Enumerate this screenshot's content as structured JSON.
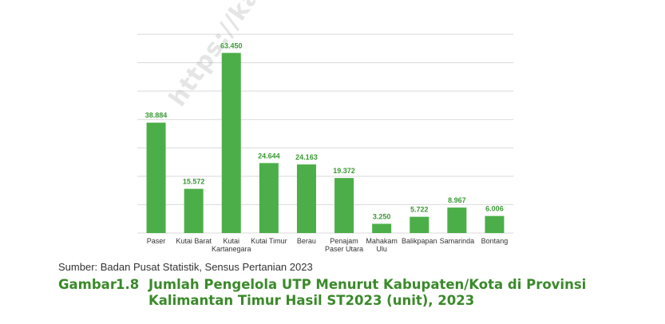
{
  "watermark": "https://kaltim.bps",
  "source_note": "Sumber: Badan Pusat Statistik, Sensus Pertanian 2023",
  "figure": {
    "label": "Gambar",
    "number": "1.8",
    "title": "Jumlah Pengelola UTP Menurut Kabupaten/Kota di Provinsi Kalimantan Timur Hasil ST2023 (unit), 2023"
  },
  "colors": {
    "bar": "#4cae48",
    "value_label": "#3a9a35",
    "grid": "#d9d9d9",
    "caption": "#3a8a2a"
  },
  "chart_data": {
    "type": "bar",
    "categories": [
      "Paser",
      "Kutai Barat",
      "Kutai Kartanegara",
      "Kutai Timur",
      "Berau",
      "Penajam Paser Utara",
      "Mahakam Ulu",
      "Balikpapan",
      "Samarinda",
      "Bontang"
    ],
    "category_lines": [
      [
        "Paser"
      ],
      [
        "Kutai Barat"
      ],
      [
        "Kutai",
        "Kartanegara"
      ],
      [
        "Kutai Timur"
      ],
      [
        "Berau"
      ],
      [
        "Penajam",
        "Paser Utara"
      ],
      [
        "Mahakam",
        "Ulu"
      ],
      [
        "Balikpapan"
      ],
      [
        "Samarinda"
      ],
      [
        "Bontang"
      ]
    ],
    "values": [
      38884,
      15572,
      63450,
      24644,
      24163,
      19372,
      3250,
      5722,
      8967,
      6006
    ],
    "value_labels": [
      "38.884",
      "15.572",
      "63.450",
      "24.644",
      "24.163",
      "19.372",
      "3.250",
      "5.722",
      "8.967",
      "6.006"
    ],
    "ylim": [
      0,
      70000
    ],
    "gridlines": [
      0,
      10000,
      20000,
      30000,
      40000,
      50000,
      60000,
      70000
    ],
    "grid": true
  }
}
